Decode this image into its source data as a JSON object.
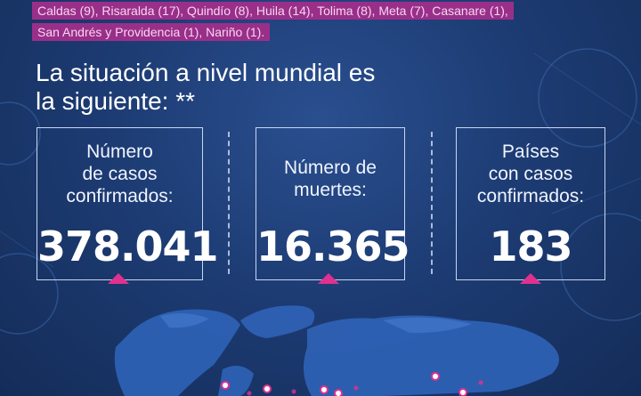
{
  "highlight": {
    "line1": "Caldas (9), Risaralda (17), Quindío (8), Huila (14), Tolima (8), Meta (7), Casanare (1),",
    "line2": "San Andrés y Providencia (1), Nariño (1)."
  },
  "heading": {
    "line1": "La situación a nivel mundial es",
    "line2": "la siguiente: **"
  },
  "stats": [
    {
      "label_lines": [
        "Número",
        "de casos",
        "confirmados:"
      ],
      "value": "378.041"
    },
    {
      "label_lines": [
        "Número de",
        "muertes:"
      ],
      "value": "16.365"
    },
    {
      "label_lines": [
        "Países",
        "con casos",
        "confirmados:"
      ],
      "value": "183"
    }
  ],
  "colors": {
    "background": "#1d3c74",
    "highlight": "#9a2f8a",
    "accent": "#e0318f",
    "box_border": "#c8d6f0"
  }
}
